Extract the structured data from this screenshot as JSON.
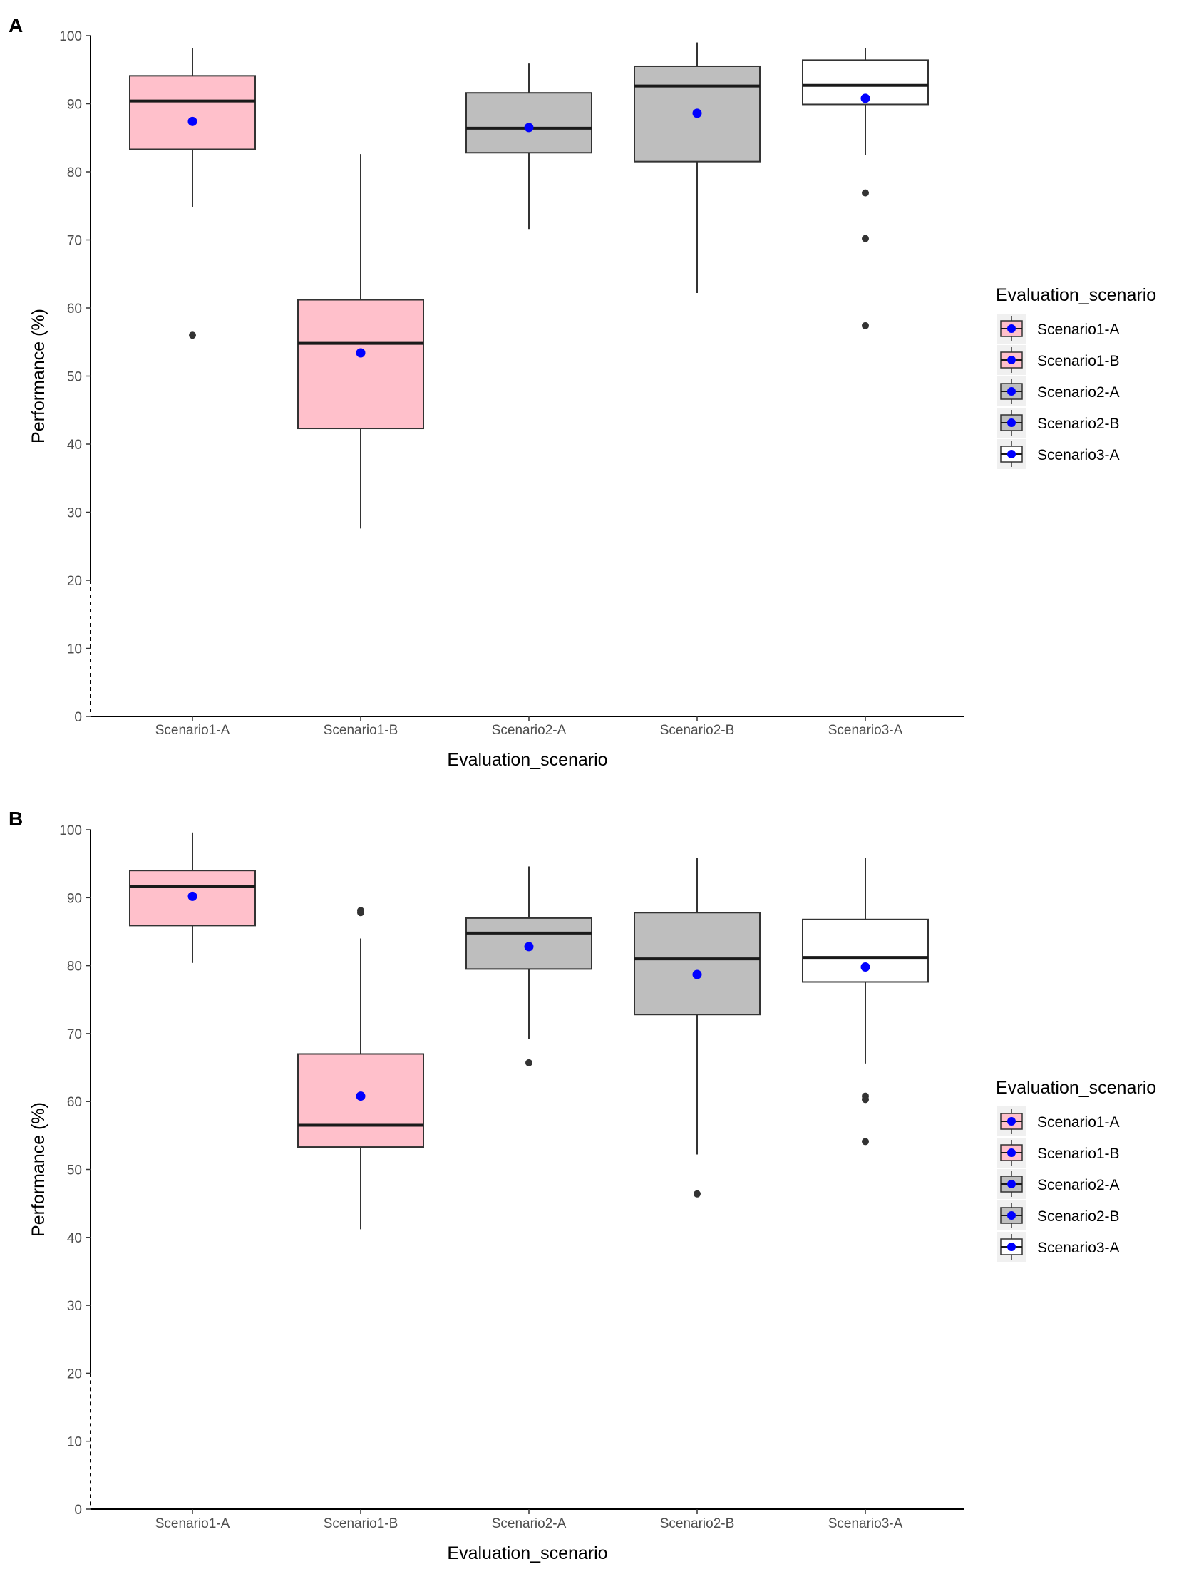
{
  "chart_data": [
    {
      "type": "boxplot",
      "panel_label": "A",
      "xlabel": "Evaluation_scenario",
      "ylabel": "Performance (%)",
      "ylim": [
        0,
        100
      ],
      "y_ticks": [
        0,
        10,
        20,
        30,
        40,
        50,
        60,
        70,
        80,
        90,
        100
      ],
      "grid": false,
      "legend": {
        "title": "Evaluation_scenario",
        "position": "right",
        "entries": [
          "Scenario1-A",
          "Scenario1-B",
          "Scenario2-A",
          "Scenario2-B",
          "Scenario3-A"
        ]
      },
      "categories": [
        "Scenario1-A",
        "Scenario1-B",
        "Scenario2-A",
        "Scenario2-B",
        "Scenario3-A"
      ],
      "boxes": [
        {
          "category": "Scenario1-A",
          "whisker_low": 74.8,
          "q1": 83.3,
          "median": 90.4,
          "q3": 94.1,
          "whisker_high": 98.2,
          "mean": 87.4,
          "outliers": [
            56.0
          ],
          "fill": "#ffc0cb"
        },
        {
          "category": "Scenario1-B",
          "whisker_low": 27.6,
          "q1": 42.3,
          "median": 54.8,
          "q3": 61.2,
          "whisker_high": 82.6,
          "mean": 53.4,
          "outliers": [],
          "fill": "#ffc0cb"
        },
        {
          "category": "Scenario2-A",
          "whisker_low": 71.6,
          "q1": 82.8,
          "median": 86.4,
          "q3": 91.6,
          "whisker_high": 95.9,
          "mean": 86.5,
          "outliers": [],
          "fill": "#bebebe"
        },
        {
          "category": "Scenario2-B",
          "whisker_low": 62.2,
          "q1": 81.5,
          "median": 92.6,
          "q3": 95.5,
          "whisker_high": 99.0,
          "mean": 88.6,
          "outliers": [],
          "fill": "#bebebe"
        },
        {
          "category": "Scenario3-A",
          "whisker_low": 82.5,
          "q1": 89.9,
          "median": 92.7,
          "q3": 96.4,
          "whisker_high": 98.2,
          "mean": 90.8,
          "outliers": [
            76.9,
            70.2,
            57.4
          ],
          "fill": "#ffffff"
        }
      ]
    },
    {
      "type": "boxplot",
      "panel_label": "B",
      "xlabel": "Evaluation_scenario",
      "ylabel": "Performance (%)",
      "ylim": [
        0,
        100
      ],
      "y_ticks": [
        0,
        10,
        20,
        30,
        40,
        50,
        60,
        70,
        80,
        90,
        100
      ],
      "grid": false,
      "legend": {
        "title": "Evaluation_scenario",
        "position": "right",
        "entries": [
          "Scenario1-A",
          "Scenario1-B",
          "Scenario2-A",
          "Scenario2-B",
          "Scenario3-A"
        ]
      },
      "categories": [
        "Scenario1-A",
        "Scenario1-B",
        "Scenario2-A",
        "Scenario2-B",
        "Scenario3-A"
      ],
      "boxes": [
        {
          "category": "Scenario1-A",
          "whisker_low": 80.4,
          "q1": 85.9,
          "median": 91.6,
          "q3": 94.0,
          "whisker_high": 99.6,
          "mean": 90.2,
          "outliers": [],
          "fill": "#ffc0cb"
        },
        {
          "category": "Scenario1-B",
          "whisker_low": 41.2,
          "q1": 53.3,
          "median": 56.5,
          "q3": 67.0,
          "whisker_high": 84.0,
          "mean": 60.8,
          "outliers": [
            88.1,
            87.8
          ],
          "fill": "#ffc0cb"
        },
        {
          "category": "Scenario2-A",
          "whisker_low": 69.2,
          "q1": 79.5,
          "median": 84.8,
          "q3": 87.0,
          "whisker_high": 94.6,
          "mean": 82.8,
          "outliers": [
            65.7
          ],
          "fill": "#bebebe"
        },
        {
          "category": "Scenario2-B",
          "whisker_low": 52.2,
          "q1": 72.8,
          "median": 81.0,
          "q3": 87.8,
          "whisker_high": 95.9,
          "mean": 78.7,
          "outliers": [
            46.4
          ],
          "fill": "#bebebe"
        },
        {
          "category": "Scenario3-A",
          "whisker_low": 65.6,
          "q1": 77.6,
          "median": 81.2,
          "q3": 86.8,
          "whisker_high": 95.9,
          "mean": 79.8,
          "outliers": [
            60.8,
            60.3,
            54.1
          ],
          "fill": "#ffffff"
        }
      ]
    }
  ],
  "colors": {
    "mean_marker": "#0000ff",
    "box_stroke": "#333333",
    "median_stroke": "#1a1a1a",
    "outlier": "#333333",
    "legend_key_bg": "#f0f0f0"
  }
}
